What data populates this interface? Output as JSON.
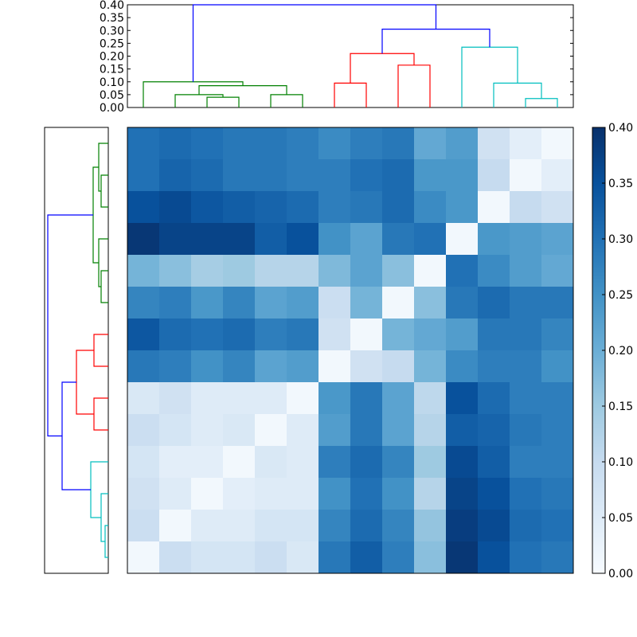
{
  "chart_data": [
    {
      "type": "dendrogram",
      "orientation": "top",
      "yticks": [
        "0.00",
        "0.05",
        "0.10",
        "0.15",
        "0.20",
        "0.25",
        "0.30",
        "0.35",
        "0.40"
      ],
      "ylim": [
        0,
        0.4
      ],
      "leaf_order": [
        0,
        1,
        2,
        3,
        4,
        5,
        6,
        7,
        8,
        9,
        10,
        11,
        12,
        13
      ],
      "links": [
        {
          "a": 2.5,
          "b": 3.5,
          "h": 0.04,
          "lo_a": 0.0,
          "lo_b": 0.0,
          "color": "#008000"
        },
        {
          "a": 1.5,
          "b": 3.0,
          "h": 0.05,
          "lo_a": 0.0,
          "lo_b": 0.04,
          "color": "#008000"
        },
        {
          "a": 4.5,
          "b": 5.5,
          "h": 0.05,
          "lo_a": 0.0,
          "lo_b": 0.0,
          "color": "#008000"
        },
        {
          "a": 2.25,
          "b": 5.0,
          "h": 0.085,
          "lo_a": 0.05,
          "lo_b": 0.05,
          "color": "#008000"
        },
        {
          "a": 0.5,
          "b": 3.625,
          "h": 0.1,
          "lo_a": 0.0,
          "lo_b": 0.085,
          "color": "#008000"
        },
        {
          "a": 6.5,
          "b": 7.5,
          "h": 0.095,
          "lo_a": 0.0,
          "lo_b": 0.0,
          "color": "#ff0000"
        },
        {
          "a": 8.5,
          "b": 9.5,
          "h": 0.165,
          "lo_a": 0.0,
          "lo_b": 0.0,
          "color": "#ff0000"
        },
        {
          "a": 7.0,
          "b": 9.0,
          "h": 0.21,
          "lo_a": 0.095,
          "lo_b": 0.165,
          "color": "#ff0000"
        },
        {
          "a": 12.5,
          "b": 13.5,
          "h": 0.035,
          "lo_a": 0.0,
          "lo_b": 0.0,
          "color": "#00bfbf"
        },
        {
          "a": 11.5,
          "b": 13.0,
          "h": 0.095,
          "lo_a": 0.0,
          "lo_b": 0.035,
          "color": "#00bfbf"
        },
        {
          "a": 10.5,
          "b": 12.25,
          "h": 0.235,
          "lo_a": 0.0,
          "lo_b": 0.095,
          "color": "#00bfbf"
        },
        {
          "a": 8.0,
          "b": 11.375,
          "h": 0.305,
          "lo_a": 0.21,
          "lo_b": 0.235,
          "color": "#0000ff"
        },
        {
          "a": 2.0625,
          "b": 9.6875,
          "h": 0.4,
          "lo_a": 0.1,
          "lo_b": 0.305,
          "color": "#0000ff"
        }
      ]
    },
    {
      "type": "dendrogram",
      "orientation": "left",
      "leaf_order": [
        13,
        12,
        11,
        10,
        9,
        8,
        7,
        6,
        5,
        4,
        3,
        2,
        1,
        0
      ],
      "xlim": [
        0,
        0.4
      ],
      "links": [
        {
          "a": 0.5,
          "b": 1.5,
          "h": 0.02,
          "lo_a": 0.0,
          "lo_b": 0.0,
          "color": "#00bfbf"
        },
        {
          "a": 1.0,
          "b": 2.5,
          "h": 0.045,
          "lo_a": 0.02,
          "lo_b": 0.0,
          "color": "#00bfbf"
        },
        {
          "a": 1.75,
          "b": 3.5,
          "h": 0.11,
          "lo_a": 0.045,
          "lo_b": 0.0,
          "color": "#00bfbf"
        },
        {
          "a": 4.5,
          "b": 5.5,
          "h": 0.09,
          "lo_a": 0.0,
          "lo_b": 0.0,
          "color": "#ff0000"
        },
        {
          "a": 6.5,
          "b": 7.5,
          "h": 0.09,
          "lo_a": 0.0,
          "lo_b": 0.0,
          "color": "#ff0000"
        },
        {
          "a": 5.0,
          "b": 7.0,
          "h": 0.2,
          "lo_a": 0.09,
          "lo_b": 0.09,
          "color": "#ff0000"
        },
        {
          "a": 2.625,
          "b": 6.0,
          "h": 0.29,
          "lo_a": 0.11,
          "lo_b": 0.2,
          "color": "#0000ff"
        },
        {
          "a": 8.5,
          "b": 9.5,
          "h": 0.045,
          "lo_a": 0.0,
          "lo_b": 0.0,
          "color": "#008000"
        },
        {
          "a": 9.0,
          "b": 10.5,
          "h": 0.06,
          "lo_a": 0.045,
          "lo_b": 0.0,
          "color": "#008000"
        },
        {
          "a": 11.5,
          "b": 12.5,
          "h": 0.045,
          "lo_a": 0.0,
          "lo_b": 0.0,
          "color": "#008000"
        },
        {
          "a": 12.0,
          "b": 13.5,
          "h": 0.06,
          "lo_a": 0.045,
          "lo_b": 0.0,
          "color": "#008000"
        },
        {
          "a": 9.75,
          "b": 12.75,
          "h": 0.095,
          "lo_a": 0.06,
          "lo_b": 0.06,
          "color": "#008000"
        },
        {
          "a": 4.3125,
          "b": 11.25,
          "h": 0.38,
          "lo_a": 0.29,
          "lo_b": 0.095,
          "color": "#0000ff"
        }
      ]
    },
    {
      "type": "heatmap",
      "rows": 14,
      "cols": 14,
      "vmin": 0,
      "vmax": 0.4,
      "values": [
        [
          0.3,
          0.31,
          0.3,
          0.29,
          0.29,
          0.28,
          0.26,
          0.28,
          0.29,
          0.21,
          0.23,
          0.08,
          0.04,
          0.01
        ],
        [
          0.3,
          0.32,
          0.31,
          0.29,
          0.29,
          0.28,
          0.28,
          0.3,
          0.31,
          0.24,
          0.24,
          0.1,
          0.01,
          0.04
        ],
        [
          0.35,
          0.36,
          0.34,
          0.33,
          0.32,
          0.31,
          0.28,
          0.29,
          0.31,
          0.26,
          0.24,
          0.01,
          0.1,
          0.08
        ],
        [
          0.39,
          0.37,
          0.37,
          0.37,
          0.33,
          0.35,
          0.25,
          0.22,
          0.29,
          0.3,
          0.01,
          0.24,
          0.23,
          0.22
        ],
        [
          0.19,
          0.17,
          0.14,
          0.15,
          0.12,
          0.12,
          0.18,
          0.22,
          0.17,
          0.01,
          0.3,
          0.26,
          0.23,
          0.21
        ],
        [
          0.27,
          0.28,
          0.24,
          0.27,
          0.22,
          0.23,
          0.09,
          0.19,
          0.01,
          0.17,
          0.29,
          0.31,
          0.29,
          0.29
        ],
        [
          0.34,
          0.31,
          0.3,
          0.31,
          0.28,
          0.29,
          0.08,
          0.01,
          0.19,
          0.21,
          0.23,
          0.29,
          0.29,
          0.27
        ],
        [
          0.29,
          0.28,
          0.25,
          0.27,
          0.22,
          0.23,
          0.01,
          0.08,
          0.1,
          0.19,
          0.26,
          0.28,
          0.28,
          0.25
        ],
        [
          0.06,
          0.08,
          0.05,
          0.05,
          0.05,
          0.01,
          0.24,
          0.29,
          0.22,
          0.11,
          0.35,
          0.31,
          0.28,
          0.28
        ],
        [
          0.09,
          0.07,
          0.05,
          0.06,
          0.01,
          0.05,
          0.23,
          0.29,
          0.22,
          0.12,
          0.33,
          0.32,
          0.29,
          0.28
        ],
        [
          0.07,
          0.04,
          0.04,
          0.01,
          0.06,
          0.05,
          0.28,
          0.31,
          0.27,
          0.15,
          0.36,
          0.33,
          0.28,
          0.28
        ],
        [
          0.08,
          0.05,
          0.01,
          0.04,
          0.05,
          0.05,
          0.25,
          0.3,
          0.25,
          0.12,
          0.37,
          0.35,
          0.3,
          0.29
        ],
        [
          0.09,
          0.01,
          0.05,
          0.05,
          0.07,
          0.07,
          0.27,
          0.31,
          0.27,
          0.16,
          0.38,
          0.36,
          0.31,
          0.3
        ],
        [
          0.01,
          0.09,
          0.07,
          0.07,
          0.09,
          0.06,
          0.29,
          0.33,
          0.28,
          0.17,
          0.39,
          0.35,
          0.3,
          0.29
        ]
      ]
    },
    {
      "type": "colorbar",
      "ticks": [
        "0.00",
        "0.05",
        "0.10",
        "0.15",
        "0.20",
        "0.25",
        "0.30",
        "0.35",
        "0.40"
      ],
      "vmin": 0,
      "vmax": 0.4,
      "colormap": "Blues",
      "colors": [
        "#f7fbff",
        "#deebf7",
        "#c6dbef",
        "#9ecae1",
        "#6baed6",
        "#4292c6",
        "#2171b5",
        "#08519c",
        "#08306b"
      ]
    }
  ]
}
